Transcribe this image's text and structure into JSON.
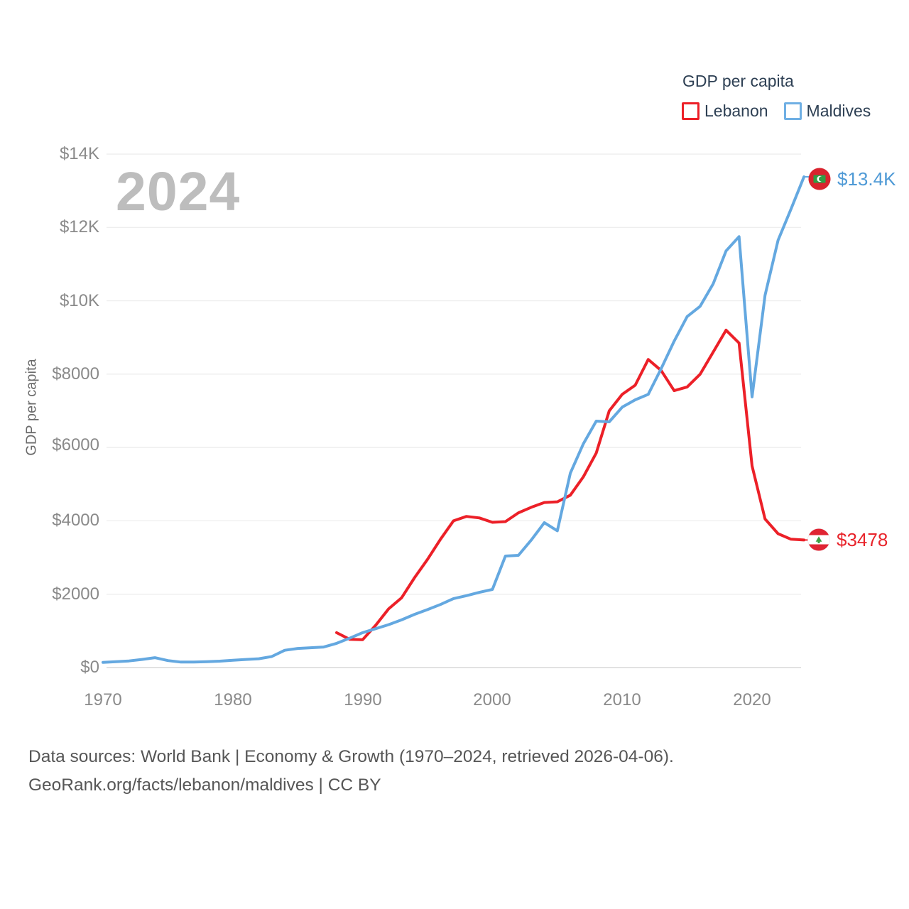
{
  "legend": {
    "title": "GDP per capita",
    "items": [
      {
        "label": "Lebanon",
        "color": "#ec2028"
      },
      {
        "label": "Maldives",
        "color": "#6fafe4"
      }
    ]
  },
  "watermark": "2024",
  "axes": {
    "y": {
      "label": "GDP per capita",
      "ticks": [
        "$0",
        "$2000",
        "$4000",
        "$6000",
        "$8000",
        "$10K",
        "$12K",
        "$14K"
      ]
    },
    "x": {
      "ticks": [
        "1970",
        "1980",
        "1990",
        "2000",
        "2010",
        "2020"
      ]
    }
  },
  "end_labels": [
    {
      "series": "Maldives",
      "value": "$13.4K",
      "color": "#4f9ad6"
    },
    {
      "series": "Lebanon",
      "value": "$3478",
      "color": "#e8242b"
    }
  ],
  "footer": {
    "line1": "Data sources: World Bank | Economy & Growth (1970–2024, retrieved 2026-04-06).",
    "line2": "GeoRank.org/facts/lebanon/maldives | CC BY"
  },
  "chart_data": {
    "type": "line",
    "title": "GDP per capita",
    "ylabel": "GDP per capita",
    "xlabel": "",
    "ylim": [
      0,
      14000
    ],
    "xlim": [
      1970,
      2024
    ],
    "grid": "horizontal",
    "legend_position": "top-right",
    "x": [
      1970,
      1971,
      1972,
      1973,
      1974,
      1975,
      1976,
      1977,
      1978,
      1979,
      1980,
      1981,
      1982,
      1983,
      1984,
      1985,
      1986,
      1987,
      1988,
      1989,
      1990,
      1991,
      1992,
      1993,
      1994,
      1995,
      1996,
      1997,
      1998,
      1999,
      2000,
      2001,
      2002,
      2003,
      2004,
      2005,
      2006,
      2007,
      2008,
      2009,
      2010,
      2011,
      2012,
      2013,
      2014,
      2015,
      2016,
      2017,
      2018,
      2019,
      2020,
      2021,
      2022,
      2023,
      2024
    ],
    "series": [
      {
        "name": "Lebanon",
        "color": "#ec2028",
        "values": [
          null,
          null,
          null,
          null,
          null,
          null,
          null,
          null,
          null,
          null,
          null,
          null,
          null,
          null,
          null,
          null,
          null,
          null,
          950,
          770,
          760,
          1150,
          1600,
          1900,
          2450,
          2950,
          3500,
          4000,
          4120,
          4080,
          3960,
          3980,
          4220,
          4370,
          4500,
          4520,
          4700,
          5200,
          5850,
          7000,
          7450,
          7700,
          8400,
          8100,
          7550,
          7650,
          8000,
          8600,
          9200,
          8850,
          5500,
          4050,
          3650,
          3500,
          3478
        ]
      },
      {
        "name": "Maldives",
        "color": "#64a8e0",
        "values": [
          140,
          160,
          180,
          220,
          270,
          190,
          150,
          150,
          160,
          175,
          200,
          220,
          240,
          300,
          470,
          520,
          540,
          560,
          660,
          800,
          950,
          1060,
          1170,
          1300,
          1450,
          1580,
          1720,
          1880,
          1960,
          2050,
          2130,
          3040,
          3060,
          3480,
          3950,
          3730,
          5300,
          6100,
          6720,
          6700,
          7100,
          7300,
          7450,
          8150,
          8900,
          9570,
          9850,
          10460,
          11360,
          11750,
          7380,
          10150,
          11650,
          12500,
          13380
        ]
      }
    ]
  }
}
